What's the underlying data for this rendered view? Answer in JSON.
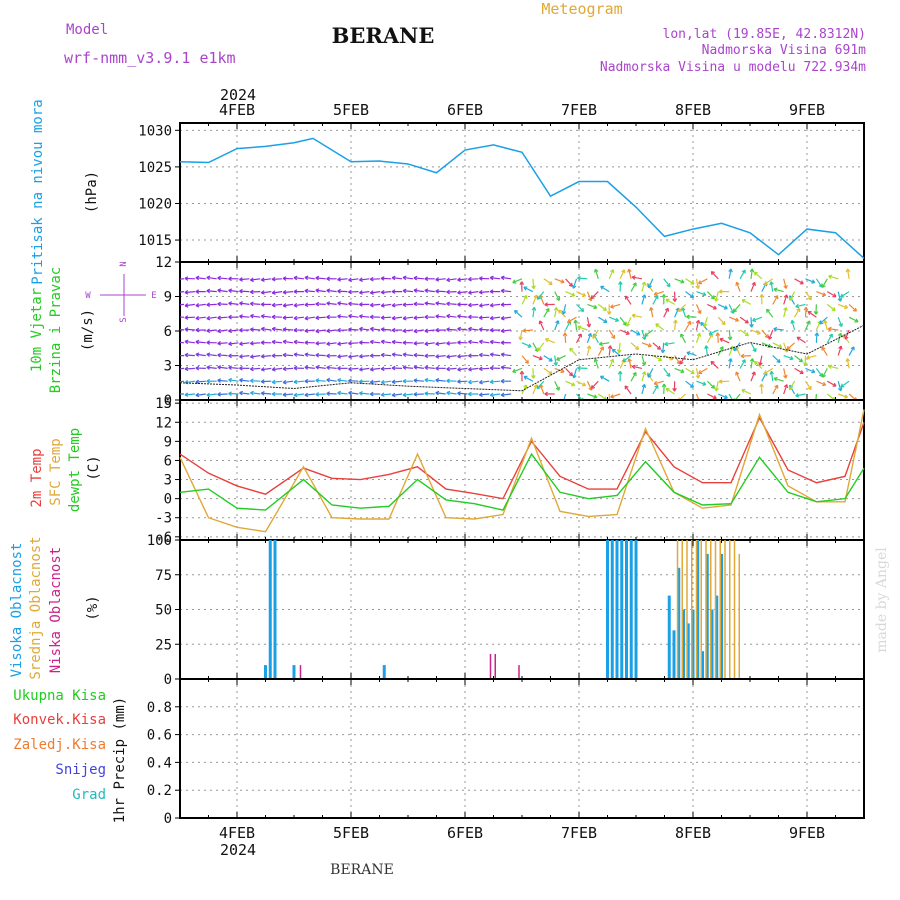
{
  "header": {
    "model_label": "Model",
    "model_name": "wrf-nmm_v3.9.1  e1km",
    "title": "BERANE",
    "meteogram": "Meteogram",
    "lonlat": "lon,lat (19.85E, 42.8312N)",
    "elevation": "Nadmorska Visina 691m",
    "model_elevation": "Nadmorska Visina u modelu 722.934m",
    "footer_title": "BERANE",
    "watermark": "made by Angel"
  },
  "colors": {
    "pressure": "#1aa0e6",
    "temp2m": "#e8403c",
    "sfc_temp": "#e0a838",
    "dewpoint": "#22cc22",
    "high_cloud": "#1aa0e6",
    "mid_cloud": "#e0a838",
    "low_cloud": "#cc2288",
    "purple": "#aa44cc"
  },
  "date_axis": {
    "top_year": "2024",
    "bottom_year": "2024",
    "labels": [
      "4FEB",
      "5FEB",
      "6FEB",
      "7FEB",
      "8FEB",
      "9FEB"
    ]
  },
  "chart_data": [
    {
      "type": "line",
      "panel": "pressure",
      "ylabel": [
        "Pritisak na nivou mora",
        "(hPa)"
      ],
      "ylim": [
        1012,
        1031
      ],
      "yticks": [
        1015,
        1020,
        1025,
        1030
      ],
      "xlim": [
        "2024-02-03 12:00",
        "2024-02-09 12:00"
      ],
      "series": [
        {
          "x": [
            "2024-02-03 12:00",
            "2024-02-03 18:00",
            "2024-02-04 00:00",
            "2024-02-04 06:00",
            "2024-02-04 12:00",
            "2024-02-04 16:00",
            "2024-02-05 00:00",
            "2024-02-05 06:00",
            "2024-02-05 12:00",
            "2024-02-05 18:00",
            "2024-02-06 00:00",
            "2024-02-06 06:00",
            "2024-02-06 12:00",
            "2024-02-06 18:00",
            "2024-02-07 00:00",
            "2024-02-07 06:00",
            "2024-02-07 12:00",
            "2024-02-07 18:00",
            "2024-02-08 00:00",
            "2024-02-08 06:00",
            "2024-02-08 12:00",
            "2024-02-08 18:00",
            "2024-02-09 00:00",
            "2024-02-09 06:00",
            "2024-02-09 12:00"
          ],
          "values": [
            1025.7,
            1025.6,
            1027.5,
            1027.8,
            1028.3,
            1028.9,
            1025.7,
            1025.8,
            1025.4,
            1024.2,
            1027.3,
            1028.0,
            1027.0,
            1021.0,
            1023.0,
            1023.0,
            1019.5,
            1015.5,
            1016.5,
            1017.3,
            1016.0,
            1013.0,
            1016.5,
            1016.0,
            1012.5
          ]
        }
      ]
    },
    {
      "type": "scatter",
      "panel": "wind",
      "ylabel": [
        "10m Vjetar",
        "Brzina i Pravac",
        "(m/s)"
      ],
      "compass": [
        "N",
        "W",
        "E",
        "S"
      ],
      "ylim": [
        0,
        12
      ],
      "yticks": [
        0,
        3,
        6,
        9,
        12
      ],
      "series": [
        {
          "name": "wind speed",
          "x": [
            "2024-02-03 12:00",
            "2024-02-04 00:00",
            "2024-02-04 12:00",
            "2024-02-05 00:00",
            "2024-02-05 12:00",
            "2024-02-06 00:00",
            "2024-02-06 12:00",
            "2024-02-07 00:00",
            "2024-02-07 12:00",
            "2024-02-08 00:00",
            "2024-02-08 12:00",
            "2024-02-09 00:00",
            "2024-02-09 12:00"
          ],
          "values": [
            1.5,
            1.3,
            1.0,
            1.5,
            1.2,
            1.0,
            0.8,
            3.5,
            4.0,
            3.5,
            5.0,
            4.0,
            6.5
          ]
        }
      ]
    },
    {
      "type": "line",
      "panel": "temperature",
      "ylabel": [
        "2m Temp",
        "SFC Temp",
        "dewpt Temp",
        "(C)"
      ],
      "ylim": [
        -6.5,
        15.5
      ],
      "yticks": [
        -6,
        -3,
        0,
        3,
        6,
        9,
        12,
        15
      ],
      "series": [
        {
          "name": "2m Temp",
          "x": [
            "2024-02-03 12:00",
            "2024-02-03 18:00",
            "2024-02-04 00:00",
            "2024-02-04 06:00",
            "2024-02-04 14:00",
            "2024-02-04 20:00",
            "2024-02-05 02:00",
            "2024-02-05 08:00",
            "2024-02-05 14:00",
            "2024-02-05 20:00",
            "2024-02-06 02:00",
            "2024-02-06 08:00",
            "2024-02-06 14:00",
            "2024-02-06 20:00",
            "2024-02-07 02:00",
            "2024-02-07 08:00",
            "2024-02-07 14:00",
            "2024-02-07 20:00",
            "2024-02-08 02:00",
            "2024-02-08 08:00",
            "2024-02-08 14:00",
            "2024-02-08 20:00",
            "2024-02-09 02:00",
            "2024-02-09 08:00",
            "2024-02-09 12:00"
          ],
          "values": [
            7.0,
            4.0,
            2.0,
            0.7,
            4.8,
            3.2,
            3.0,
            3.8,
            5.0,
            1.5,
            0.8,
            0.0,
            9.0,
            3.5,
            1.5,
            1.5,
            10.5,
            5.0,
            2.5,
            2.5,
            12.7,
            4.5,
            2.5,
            3.5,
            12.0
          ]
        },
        {
          "name": "SFC Temp",
          "x": [
            "2024-02-03 12:00",
            "2024-02-03 18:00",
            "2024-02-04 00:00",
            "2024-02-04 06:00",
            "2024-02-04 14:00",
            "2024-02-04 20:00",
            "2024-02-05 02:00",
            "2024-02-05 08:00",
            "2024-02-05 14:00",
            "2024-02-05 20:00",
            "2024-02-06 02:00",
            "2024-02-06 08:00",
            "2024-02-06 14:00",
            "2024-02-06 20:00",
            "2024-02-07 02:00",
            "2024-02-07 08:00",
            "2024-02-07 14:00",
            "2024-02-07 20:00",
            "2024-02-08 02:00",
            "2024-02-08 08:00",
            "2024-02-08 14:00",
            "2024-02-08 20:00",
            "2024-02-09 02:00",
            "2024-02-09 08:00",
            "2024-02-09 12:00"
          ],
          "values": [
            6.5,
            -3.0,
            -4.5,
            -5.2,
            5.0,
            -3.0,
            -3.2,
            -3.2,
            7.0,
            -3.0,
            -3.2,
            -2.5,
            9.5,
            -2.0,
            -2.8,
            -2.5,
            11.0,
            1.0,
            -1.5,
            -1.0,
            13.2,
            2.0,
            -0.5,
            -0.5,
            14.0
          ]
        },
        {
          "name": "dewpt Temp",
          "x": [
            "2024-02-03 12:00",
            "2024-02-03 18:00",
            "2024-02-04 00:00",
            "2024-02-04 06:00",
            "2024-02-04 14:00",
            "2024-02-04 20:00",
            "2024-02-05 02:00",
            "2024-02-05 08:00",
            "2024-02-05 14:00",
            "2024-02-05 20:00",
            "2024-02-06 02:00",
            "2024-02-06 08:00",
            "2024-02-06 14:00",
            "2024-02-06 20:00",
            "2024-02-07 02:00",
            "2024-02-07 08:00",
            "2024-02-07 14:00",
            "2024-02-07 20:00",
            "2024-02-08 02:00",
            "2024-02-08 08:00",
            "2024-02-08 14:00",
            "2024-02-08 20:00",
            "2024-02-09 02:00",
            "2024-02-09 08:00",
            "2024-02-09 12:00"
          ],
          "values": [
            1.0,
            1.5,
            -1.5,
            -1.8,
            3.0,
            -1.0,
            -1.5,
            -1.2,
            3.0,
            -0.2,
            -0.8,
            -1.8,
            7.0,
            1.0,
            0.0,
            0.5,
            5.8,
            1.0,
            -1.0,
            -0.8,
            6.5,
            1.0,
            -0.5,
            0.0,
            4.8
          ]
        }
      ]
    },
    {
      "type": "bar",
      "panel": "cloud",
      "ylabel": [
        "Visoka Oblacnost",
        "Srednja Oblacnost",
        "Niska Oblacnost",
        "(%)"
      ],
      "ylim": [
        0,
        100
      ],
      "yticks": [
        0,
        25,
        50,
        75,
        100
      ],
      "series": [
        {
          "name": "Visoka Oblacnost",
          "x": [
            "2024-02-04 06:00",
            "2024-02-04 07:00",
            "2024-02-04 08:00",
            "2024-02-04 12:00",
            "2024-02-05 07:00",
            "2024-02-07 06:00",
            "2024-02-07 07:00",
            "2024-02-07 08:00",
            "2024-02-07 09:00",
            "2024-02-07 10:00",
            "2024-02-07 11:00",
            "2024-02-07 12:00",
            "2024-02-07 19:00",
            "2024-02-07 20:00",
            "2024-02-07 21:00",
            "2024-02-07 22:00",
            "2024-02-07 23:00",
            "2024-02-08 00:00",
            "2024-02-08 01:00",
            "2024-02-08 02:00",
            "2024-02-08 03:00",
            "2024-02-08 04:00",
            "2024-02-08 05:00",
            "2024-02-08 06:00"
          ],
          "values": [
            10,
            100,
            100,
            10,
            10,
            100,
            100,
            100,
            100,
            100,
            100,
            100,
            60,
            35,
            80,
            50,
            40,
            50,
            100,
            20,
            90,
            50,
            60,
            90
          ]
        },
        {
          "name": "Srednja Oblacnost",
          "x": [
            "2024-02-07 20:00",
            "2024-02-07 21:00",
            "2024-02-07 22:00",
            "2024-02-07 23:00",
            "2024-02-08 00:00",
            "2024-02-08 01:00",
            "2024-02-08 02:00",
            "2024-02-08 03:00",
            "2024-02-08 04:00",
            "2024-02-08 05:00",
            "2024-02-08 06:00",
            "2024-02-08 07:00",
            "2024-02-08 08:00",
            "2024-02-08 09:00"
          ],
          "values": [
            100,
            100,
            100,
            100,
            100,
            100,
            100,
            100,
            100,
            100,
            100,
            100,
            100,
            90
          ]
        },
        {
          "name": "Niska Oblacnost",
          "x": [
            "2024-02-04 14:00",
            "2024-02-06 06:00",
            "2024-02-06 07:00",
            "2024-02-06 12:00"
          ],
          "values": [
            10,
            18,
            18,
            10
          ]
        }
      ]
    },
    {
      "type": "bar",
      "panel": "precip",
      "ylabel": [
        "1hr Precip (mm)"
      ],
      "legend": [
        "Ukupna Kisa",
        "Konvek.Kisa",
        "Zaledj.Kisa",
        "Snijeg",
        "Grad"
      ],
      "ylim": [
        0,
        1
      ],
      "yticks": [
        "0",
        "0.2",
        "0.4",
        "0.6",
        "0.8"
      ],
      "series": [
        {
          "name": "Ukupna Kisa",
          "x": [],
          "values": []
        }
      ]
    }
  ]
}
